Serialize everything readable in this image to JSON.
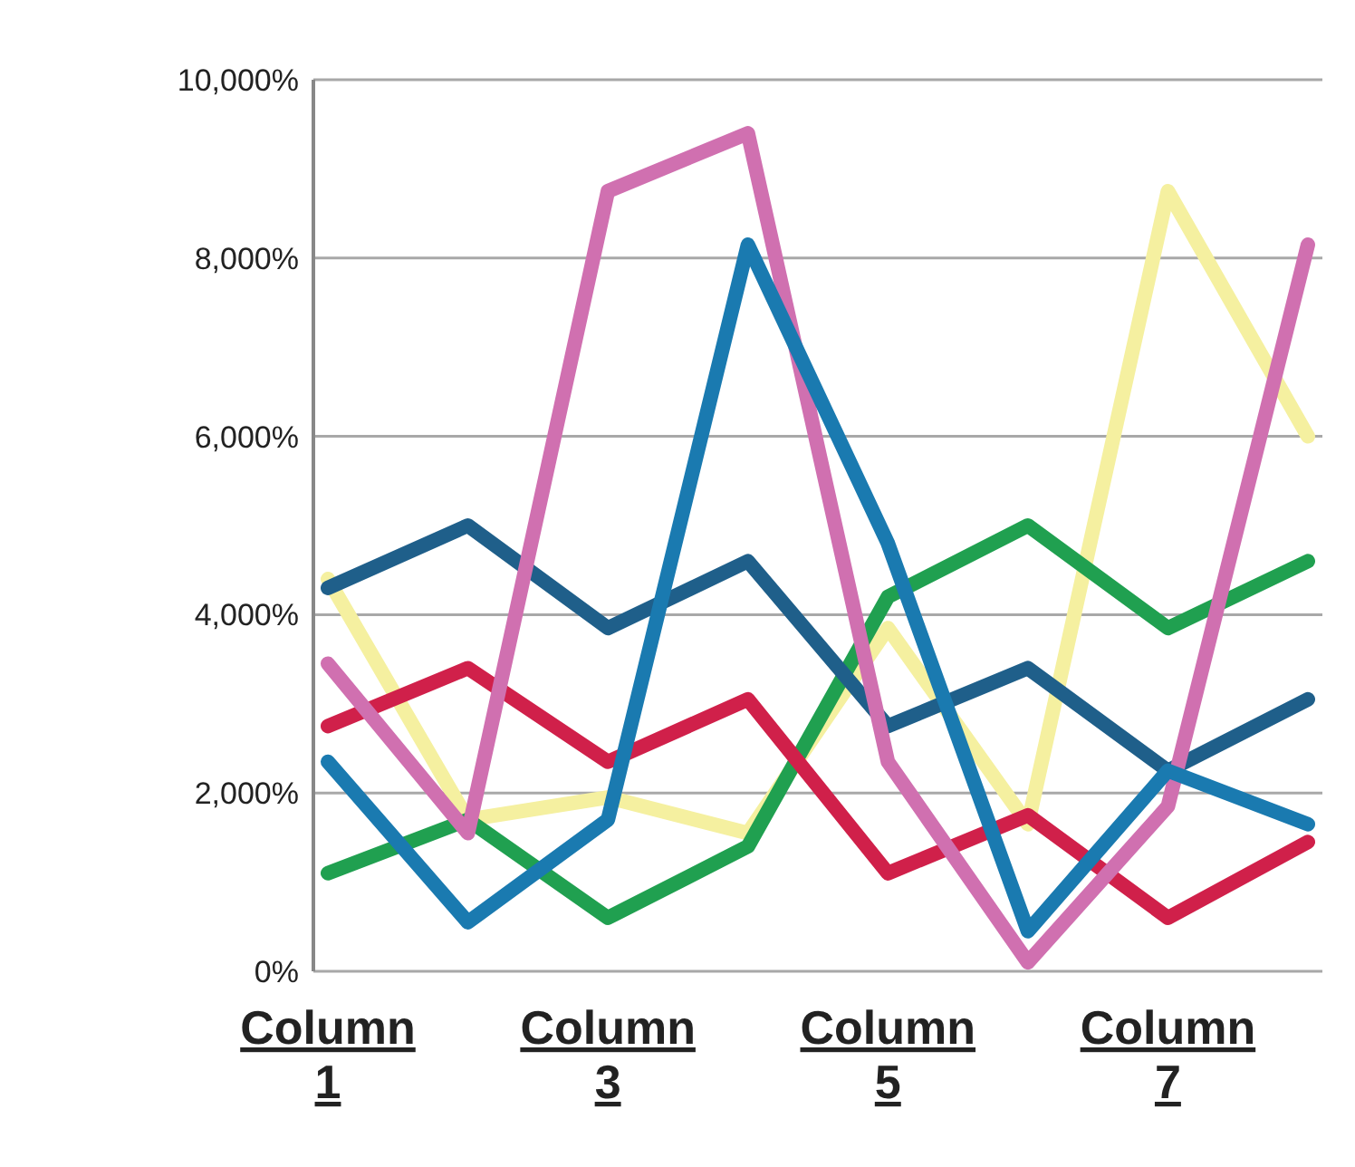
{
  "chart_data": {
    "type": "line",
    "categories": [
      "Column 1",
      null,
      "Column 3",
      null,
      "Column 5",
      null,
      "Column 7",
      null
    ],
    "ylim": [
      0,
      10000
    ],
    "yticks": [
      {
        "value": 0,
        "label": "0%"
      },
      {
        "value": 2000,
        "label": "2,000%"
      },
      {
        "value": 4000,
        "label": "4,000%"
      },
      {
        "value": 6000,
        "label": "6,000%"
      },
      {
        "value": 8000,
        "label": "8,000%"
      },
      {
        "value": 10000,
        "label": "10,000%"
      }
    ],
    "grid": "y",
    "marker": "none",
    "line_style": "solid",
    "series": [
      {
        "color": "#f5f0a0",
        "values": [
          4400,
          1700,
          1950,
          1550,
          3850,
          1650,
          8750,
          6000
        ]
      },
      {
        "color": "#20a050",
        "values": [
          1100,
          1700,
          600,
          1400,
          4200,
          5000,
          3850,
          4600
        ]
      },
      {
        "color": "#d0204a",
        "values": [
          2750,
          3400,
          2350,
          3050,
          1100,
          1750,
          600,
          1450
        ]
      },
      {
        "color": "#1f5f8a",
        "values": [
          4300,
          5000,
          3850,
          4600,
          2750,
          3400,
          2250,
          3050
        ]
      },
      {
        "color": "#d070b0",
        "values": [
          3450,
          1550,
          8750,
          9400,
          2350,
          100,
          1850,
          8150
        ]
      },
      {
        "color": "#1a7ab0",
        "values": [
          2350,
          550,
          1700,
          8150,
          4800,
          450,
          2250,
          1650
        ]
      }
    ]
  }
}
